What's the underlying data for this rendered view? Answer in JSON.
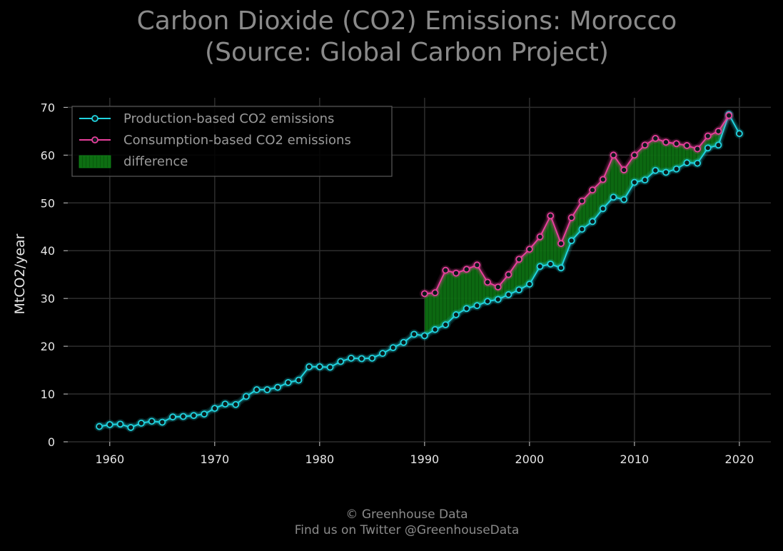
{
  "chart_data": {
    "type": "line",
    "title_lines": [
      "Carbon Dioxide (CO2) Emissions: Morocco",
      "(Source: Global Carbon Project)"
    ],
    "xlabel": "",
    "ylabel": "MtCO2/year",
    "xlim": [
      1956,
      2023
    ],
    "ylim": [
      0,
      72
    ],
    "xticks": [
      1960,
      1970,
      1980,
      1990,
      2000,
      2010,
      2020
    ],
    "yticks": [
      0,
      10,
      20,
      30,
      40,
      50,
      60,
      70
    ],
    "grid": true,
    "legend_position": "top-left",
    "series": [
      {
        "name": "Production-based CO2 emissions",
        "color": "#21d4e0",
        "x": [
          1959,
          1960,
          1961,
          1962,
          1963,
          1964,
          1965,
          1966,
          1967,
          1968,
          1969,
          1970,
          1971,
          1972,
          1973,
          1974,
          1975,
          1976,
          1977,
          1978,
          1979,
          1980,
          1981,
          1982,
          1983,
          1984,
          1985,
          1986,
          1987,
          1988,
          1989,
          1990,
          1991,
          1992,
          1993,
          1994,
          1995,
          1996,
          1997,
          1998,
          1999,
          2000,
          2001,
          2002,
          2003,
          2004,
          2005,
          2006,
          2007,
          2008,
          2009,
          2010,
          2011,
          2012,
          2013,
          2014,
          2015,
          2016,
          2017,
          2018,
          2019,
          2020
        ],
        "values": [
          3.2,
          3.6,
          3.7,
          3.0,
          3.9,
          4.3,
          4.1,
          5.2,
          5.3,
          5.5,
          5.8,
          7.0,
          7.9,
          7.8,
          9.5,
          10.9,
          10.9,
          11.4,
          12.4,
          12.9,
          15.7,
          15.7,
          15.6,
          16.8,
          17.5,
          17.4,
          17.5,
          18.5,
          19.7,
          20.8,
          22.5,
          22.2,
          23.5,
          24.5,
          26.6,
          27.9,
          28.5,
          29.4,
          29.8,
          30.8,
          31.8,
          33.0,
          36.7,
          37.2,
          36.4,
          42.1,
          44.5,
          46.1,
          48.8,
          51.2,
          50.7,
          54.3,
          54.8,
          56.8,
          56.4,
          57.1,
          58.4,
          58.3,
          61.5,
          62.1,
          68.5,
          64.5
        ]
      },
      {
        "name": "Consumption-based CO2 emissions",
        "color": "#e8409c",
        "x": [
          1990,
          1991,
          1992,
          1993,
          1994,
          1995,
          1996,
          1997,
          1998,
          1999,
          2000,
          2001,
          2002,
          2003,
          2004,
          2005,
          2006,
          2007,
          2008,
          2009,
          2010,
          2011,
          2012,
          2013,
          2014,
          2015,
          2016,
          2017,
          2018,
          2019
        ],
        "values": [
          31.0,
          31.2,
          35.9,
          35.3,
          36.1,
          37.0,
          33.4,
          32.4,
          35.0,
          38.2,
          40.3,
          42.9,
          47.3,
          41.5,
          46.9,
          50.4,
          52.7,
          54.9,
          60.0,
          56.9,
          60.0,
          62.1,
          63.5,
          62.7,
          62.4,
          62.0,
          61.3,
          64.0,
          65.0,
          68.3
        ]
      }
    ],
    "fill": {
      "name": "difference",
      "color": "#0f8a18"
    }
  },
  "footer": {
    "line1": "© Greenhouse Data",
    "line2": "Find us on Twitter @GreenhouseData"
  }
}
